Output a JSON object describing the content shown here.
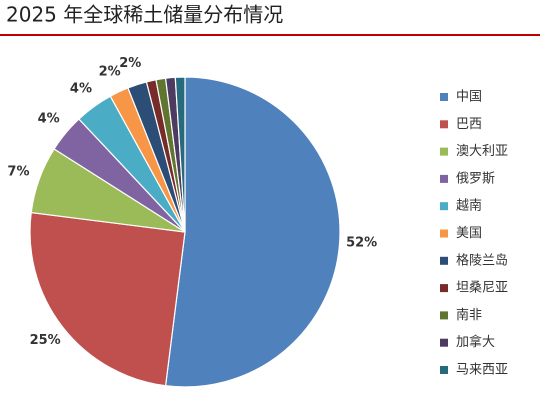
{
  "chart_data": {
    "type": "pie",
    "title": "2025 年全球稀土储量分布情况",
    "categories": [
      "中国",
      "巴西",
      "澳大利亚",
      "俄罗斯",
      "越南",
      "美国",
      "格陵兰岛",
      "坦桑尼亚",
      "南非",
      "加拿大",
      "马来西亚"
    ],
    "values": [
      52,
      25,
      7,
      4,
      4,
      2,
      2,
      1,
      1,
      1,
      1
    ],
    "value_labels": [
      "52%",
      "25%",
      "7%",
      "4%",
      "4%",
      "2%",
      "2%",
      null,
      null,
      null,
      null
    ],
    "colors": [
      "#4f81bd",
      "#c0504d",
      "#9bbb59",
      "#8064a2",
      "#4bacc6",
      "#f79646",
      "#2c4d75",
      "#772c2a",
      "#5f7530",
      "#4d3b62",
      "#276a7c"
    ],
    "legend": "right"
  }
}
